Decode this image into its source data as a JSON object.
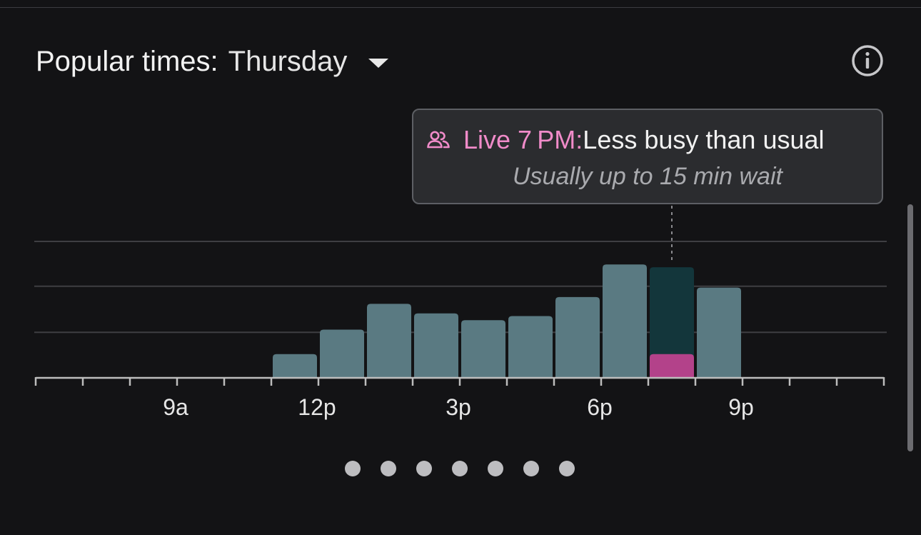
{
  "header": {
    "label": "Popular times:",
    "day": "Thursday"
  },
  "icons": {
    "dropdown": "caret-down-icon",
    "info": "info-icon",
    "people": "people-icon"
  },
  "tooltip": {
    "live_label": "Live 7 PM",
    "colon": ":",
    "status": " Less busy than usual",
    "wait": "Usually up to 15 min wait"
  },
  "colors": {
    "bar": "#5a7a82",
    "bar_current_hour": "#13363b",
    "live_fill": "#b3428a",
    "live_text": "#f08bc9",
    "grid": "#3e3e42",
    "axis": "#bdbdbd"
  },
  "chart_data": {
    "type": "bar",
    "x_tick_labels": [
      "9a",
      "12p",
      "3p",
      "6p",
      "9p"
    ],
    "categories": [
      "6a",
      "7a",
      "8a",
      "9a",
      "10a",
      "11a",
      "12p",
      "1p",
      "2p",
      "3p",
      "4p",
      "5p",
      "6p",
      "7p",
      "8p",
      "9p",
      "10p",
      "11p"
    ],
    "series": [
      {
        "name": "Usual",
        "values": [
          0,
          0,
          0,
          0,
          0,
          17,
          35,
          54,
          47,
          42,
          45,
          59,
          83,
          81,
          66,
          0,
          0,
          0
        ]
      }
    ],
    "live": {
      "hour": "7p",
      "value": 17
    },
    "highlight_hour": "7p",
    "ylim": [
      0,
      100
    ],
    "gridlines": [
      33,
      67,
      100
    ],
    "grid": true
  },
  "pagination": {
    "count": 7
  }
}
